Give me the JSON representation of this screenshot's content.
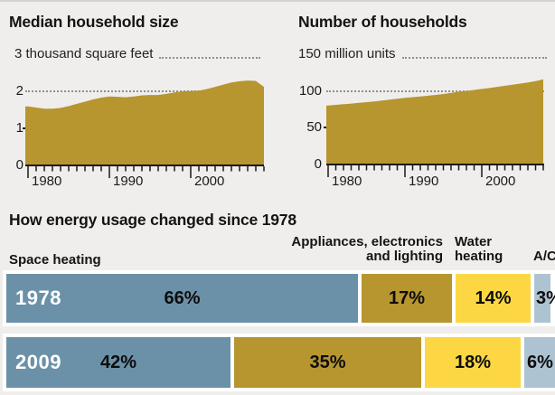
{
  "page": {
    "background": "#efeeec",
    "area_fill": "#b7952f",
    "axis_color": "#1a1a1a",
    "dotted_line_color": "#8f8f8f"
  },
  "energy_section": {
    "heading": "How energy usage changed since 1978",
    "column_labels": {
      "space": "Space heating",
      "appliances": "Appliances, electronics\nand lighting",
      "water": "Water\nheating",
      "ac": "A/C"
    }
  },
  "chart_data": [
    {
      "type": "area",
      "title": "Median household size",
      "unit_label": "3 thousand square feet",
      "ylabel": "thousand square feet",
      "ylim": [
        0,
        3
      ],
      "gridline_value": 2,
      "y_tick_labels": [
        "2",
        "1",
        "0"
      ],
      "x_tick_labels": [
        "1980",
        "1990",
        "2000"
      ],
      "x_range": [
        1980,
        2009
      ],
      "color": "#b7952f",
      "x": [
        1980,
        1981,
        1982,
        1983,
        1984,
        1985,
        1986,
        1987,
        1988,
        1989,
        1990,
        1991,
        1992,
        1993,
        1994,
        1995,
        1996,
        1997,
        1998,
        1999,
        2000,
        2001,
        2002,
        2003,
        2004,
        2005,
        2006,
        2007,
        2008,
        2009
      ],
      "values": [
        1.59,
        1.56,
        1.53,
        1.53,
        1.55,
        1.6,
        1.66,
        1.72,
        1.78,
        1.83,
        1.86,
        1.85,
        1.84,
        1.86,
        1.89,
        1.9,
        1.9,
        1.93,
        1.97,
        2.0,
        2.01,
        2.02,
        2.06,
        2.12,
        2.18,
        2.24,
        2.27,
        2.29,
        2.28,
        2.12
      ]
    },
    {
      "type": "area",
      "title": "Number of households",
      "unit_label": "150 million units",
      "ylabel": "million units",
      "ylim": [
        0,
        150
      ],
      "gridline_value": 100,
      "y_tick_labels": [
        "100",
        "50",
        "0"
      ],
      "x_tick_labels": [
        "1980",
        "1990",
        "2000"
      ],
      "x_range": [
        1980,
        2008
      ],
      "color": "#b7952f",
      "x": [
        1980,
        1981,
        1982,
        1983,
        1984,
        1985,
        1986,
        1987,
        1988,
        1989,
        1990,
        1991,
        1992,
        1993,
        1994,
        1995,
        1996,
        1997,
        1998,
        1999,
        2000,
        2001,
        2002,
        2003,
        2004,
        2005,
        2006,
        2007,
        2008
      ],
      "values": [
        80.5,
        81.5,
        82.3,
        83.2,
        84.2,
        85.2,
        86.2,
        87.3,
        88.5,
        89.7,
        91,
        92,
        93,
        94,
        95,
        96.3,
        97.8,
        99.5,
        100.5,
        101.8,
        103.2,
        104.5,
        106,
        107.5,
        109,
        110.5,
        112,
        114,
        116.4
      ]
    },
    {
      "type": "bar",
      "subtype": "stacked-horizontal",
      "title": "How energy usage changed since 1978",
      "categories": [
        "Space heating",
        "Appliances, electronics and lighting",
        "Water heating",
        "A/C"
      ],
      "colors": [
        "#6b91a8",
        "#b7952f",
        "#fcd743",
        "#adc3d1"
      ],
      "unit": "%",
      "rows": [
        {
          "label": "1978",
          "values": [
            66,
            17,
            14,
            3
          ]
        },
        {
          "label": "2009",
          "values": [
            42,
            35,
            18,
            6
          ]
        }
      ]
    }
  ]
}
